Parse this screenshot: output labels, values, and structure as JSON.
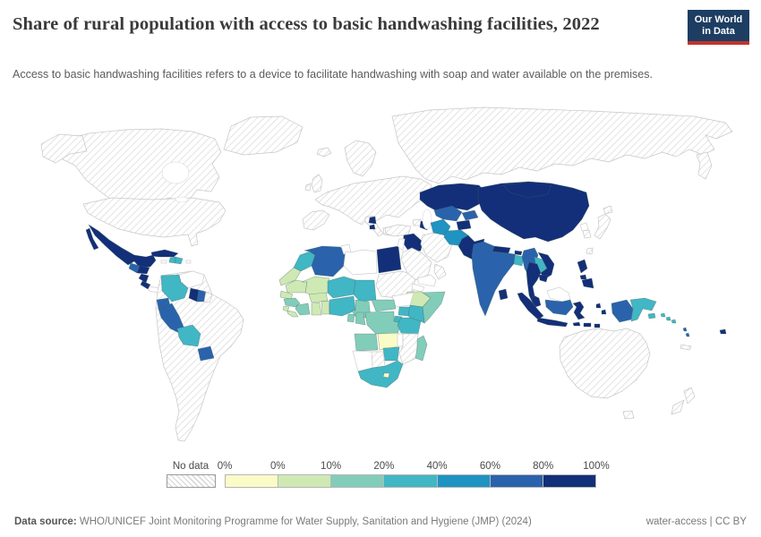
{
  "header": {
    "title": "Share of rural population with access to basic handwashing facilities, 2022",
    "subtitle": "Access to basic handwashing facilities refers to a device to facilitate handwashing with soap and water available on the premises.",
    "logo": {
      "line1": "Our World",
      "line2": "in Data",
      "bg": "#1d3d63",
      "accent": "#c0342c"
    }
  },
  "legend": {
    "no_data_label": "No data",
    "tick_labels": [
      "0%",
      "0%",
      "10%",
      "20%",
      "40%",
      "60%",
      "80%",
      "100%"
    ],
    "bucket_colors": [
      "#fbfbc7",
      "#cfe9b4",
      "#82cdb9",
      "#41b6c4",
      "#1f93c2",
      "#2a63ab",
      "#132f79"
    ]
  },
  "footer": {
    "source_label": "Data source:",
    "source_text": " WHO/UNICEF Joint Monitoring Programme for Water Supply, Sanitation and Hygiene (JMP) (2024)",
    "note": "water-access | CC BY"
  },
  "chart_data": {
    "type": "choropleth",
    "title": "Share of rural population with access to basic handwashing facilities",
    "year": "2022",
    "unit": "%",
    "bins": [
      "0%",
      "0-10%",
      "10-20%",
      "20-40%",
      "40-60%",
      "60-80%",
      "80-100%"
    ],
    "legend_position": "bottom",
    "groups": [
      {
        "range": "No data (hatched)",
        "color": "hatch",
        "countries": [
          "canada",
          "alaska",
          "greenland",
          "usa",
          "south-america-nodata",
          "french-guiana",
          "europe",
          "scandinavia",
          "uk",
          "ireland",
          "iceland",
          "italy",
          "greece",
          "turkey",
          "russia",
          "iran",
          "saudi-arabia",
          "oman",
          "sudan",
          "mozambique",
          "botswana",
          "japan",
          "south-korea",
          "taiwan",
          "australia",
          "tasmania",
          "new-zealand",
          "new-caledonia",
          "georgia-armenia"
        ]
      },
      {
        "range": "No data (unshaded)",
        "color": "#ffffff",
        "countries": [
          "panama",
          "jamaica",
          "puerto-rico",
          "venezuela",
          "libya",
          "tunisia",
          "south-sudan",
          "eritrea",
          "yemen",
          "jordan-israel",
          "namibia",
          "malawi",
          "north-korea",
          "malaysia-borneo"
        ]
      },
      {
        "range": "0%",
        "color": "#fbfbc7",
        "countries": [
          "zambia",
          "lesotho"
        ]
      },
      {
        "range": "0-10%",
        "color": "#cfe9b4",
        "countries": [
          "western-sahara",
          "mauritania",
          "mali",
          "senegal",
          "sierra-leone",
          "liberia",
          "burkina-faso",
          "ghana",
          "togo-benin",
          "ethiopia"
        ]
      },
      {
        "range": "10-20%",
        "color": "#82cdb9",
        "countries": [
          "guinea",
          "cote-divoire",
          "cameroon",
          "central-african-republic",
          "dr-congo",
          "congo",
          "gabon",
          "angola",
          "somalia",
          "madagascar"
        ]
      },
      {
        "range": "20-40%",
        "color": "#41b6c4",
        "countries": [
          "morocco",
          "niger",
          "chad",
          "nigeria",
          "uganda",
          "kenya",
          "rwanda-burundi",
          "tanzania",
          "zimbabwe",
          "south-africa",
          "colombia",
          "bolivia",
          "haiti",
          "dominican-republic",
          "laos",
          "bangladesh",
          "papua-new-guinea",
          "solomon-islands"
        ]
      },
      {
        "range": "40-60%",
        "color": "#1f93c2",
        "countries": [
          "afghanistan",
          "turkmenistan"
        ]
      },
      {
        "range": "60-80%",
        "color": "#2a63ab",
        "countries": [
          "algeria",
          "guatemala",
          "ecuador",
          "peru",
          "paraguay",
          "suriname",
          "india",
          "myanmar",
          "uzbekistan",
          "kyrgyzstan",
          "indonesia-kalimantan",
          "indonesia-papua",
          "vanuatu"
        ]
      },
      {
        "range": "80-100%",
        "color": "#132f79",
        "countries": [
          "mexico",
          "cuba",
          "honduras",
          "nicaragua",
          "costa-rica",
          "guyana",
          "serbia",
          "north-macedonia",
          "egypt",
          "syria-iraq",
          "azerbaijan",
          "kazakhstan",
          "mongolia",
          "china",
          "tajikistan",
          "pakistan",
          "nepal",
          "bhutan",
          "sri-lanka",
          "thailand",
          "cambodia",
          "vietnam",
          "malaysia-peninsular",
          "indonesia-sumatra",
          "indonesia-java",
          "indonesia-sulawesi",
          "indonesia-maluku",
          "lesser-sunda",
          "philippines",
          "fiji"
        ]
      }
    ]
  }
}
